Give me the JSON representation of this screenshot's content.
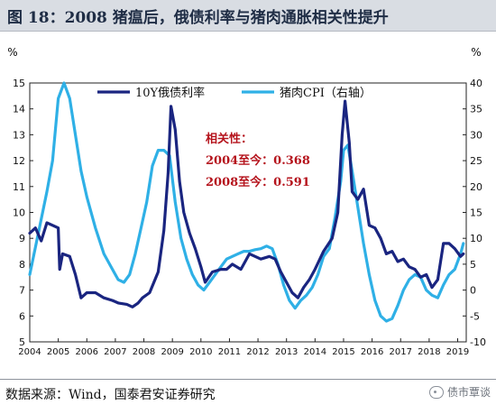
{
  "title": "图 18：2008 猪瘟后，俄债利率与猪肉通胀相关性提升",
  "source": "数据来源：Wind，国泰君安证券研究",
  "watermark": "债市覃谈",
  "colors": {
    "bond": "#1a2580",
    "pork": "#2fb0e6",
    "annotation": "#b5131c"
  },
  "chart_data": {
    "type": "line",
    "title": "",
    "xlabel": "",
    "y_left": {
      "label": "%",
      "range": [
        5,
        15
      ],
      "ticks": [
        "5",
        "6",
        "7",
        "8",
        "9",
        "10",
        "11",
        "12",
        "13",
        "14",
        "15"
      ]
    },
    "y_right": {
      "label": "%",
      "range": [
        -10,
        40
      ],
      "ticks": [
        "-10",
        "-5",
        "0",
        "5",
        "10",
        "15",
        "20",
        "25",
        "30",
        "35",
        "40"
      ]
    },
    "x_range": [
      2004,
      2019.3
    ],
    "x_ticks": [
      "2004",
      "2005",
      "2006",
      "2007",
      "2008",
      "2009",
      "2010",
      "2011",
      "2012",
      "2013",
      "2014",
      "2015",
      "2016",
      "2017",
      "2018",
      "2019"
    ],
    "legend_position": "top",
    "annotation": [
      "相关性：",
      "2004至今：0.368",
      "2008至今：0.591"
    ],
    "series": [
      {
        "name": "10Y俄债利率",
        "axis": "left",
        "points": [
          [
            2004.0,
            9.2
          ],
          [
            2004.2,
            9.4
          ],
          [
            2004.4,
            8.9
          ],
          [
            2004.6,
            9.6
          ],
          [
            2004.8,
            9.5
          ],
          [
            2005.0,
            9.4
          ],
          [
            2005.05,
            7.8
          ],
          [
            2005.15,
            8.4
          ],
          [
            2005.4,
            8.3
          ],
          [
            2005.6,
            7.6
          ],
          [
            2005.8,
            6.7
          ],
          [
            2006.0,
            6.9
          ],
          [
            2006.3,
            6.9
          ],
          [
            2006.6,
            6.7
          ],
          [
            2006.9,
            6.6
          ],
          [
            2007.1,
            6.5
          ],
          [
            2007.4,
            6.45
          ],
          [
            2007.6,
            6.35
          ],
          [
            2007.8,
            6.5
          ],
          [
            2007.95,
            6.7
          ],
          [
            2008.2,
            6.9
          ],
          [
            2008.5,
            7.7
          ],
          [
            2008.7,
            9.3
          ],
          [
            2008.85,
            11.5
          ],
          [
            2008.95,
            14.1
          ],
          [
            2009.1,
            13.2
          ],
          [
            2009.25,
            11.2
          ],
          [
            2009.4,
            10.0
          ],
          [
            2009.6,
            9.2
          ],
          [
            2009.8,
            8.6
          ],
          [
            2010.0,
            7.9
          ],
          [
            2010.15,
            7.3
          ],
          [
            2010.4,
            7.7
          ],
          [
            2010.7,
            7.8
          ],
          [
            2010.9,
            7.8
          ],
          [
            2011.1,
            8.0
          ],
          [
            2011.4,
            7.8
          ],
          [
            2011.7,
            8.4
          ],
          [
            2011.9,
            8.3
          ],
          [
            2012.1,
            8.2
          ],
          [
            2012.4,
            8.3
          ],
          [
            2012.6,
            8.2
          ],
          [
            2012.8,
            7.7
          ],
          [
            2013.0,
            7.3
          ],
          [
            2013.2,
            6.9
          ],
          [
            2013.4,
            6.7
          ],
          [
            2013.6,
            7.1
          ],
          [
            2013.8,
            7.4
          ],
          [
            2014.0,
            7.8
          ],
          [
            2014.3,
            8.5
          ],
          [
            2014.6,
            9.0
          ],
          [
            2014.8,
            10.0
          ],
          [
            2014.95,
            13.0
          ],
          [
            2015.05,
            14.3
          ],
          [
            2015.2,
            12.7
          ],
          [
            2015.3,
            10.8
          ],
          [
            2015.5,
            10.5
          ],
          [
            2015.7,
            10.9
          ],
          [
            2015.9,
            9.5
          ],
          [
            2016.1,
            9.4
          ],
          [
            2016.3,
            9.0
          ],
          [
            2016.5,
            8.4
          ],
          [
            2016.7,
            8.5
          ],
          [
            2016.9,
            8.1
          ],
          [
            2017.1,
            8.2
          ],
          [
            2017.3,
            7.9
          ],
          [
            2017.5,
            7.8
          ],
          [
            2017.7,
            7.5
          ],
          [
            2017.9,
            7.6
          ],
          [
            2018.1,
            7.1
          ],
          [
            2018.3,
            7.4
          ],
          [
            2018.5,
            8.8
          ],
          [
            2018.7,
            8.8
          ],
          [
            2018.9,
            8.6
          ],
          [
            2019.1,
            8.3
          ],
          [
            2019.2,
            8.4
          ]
        ]
      },
      {
        "name": "猪肉CPI（右轴）",
        "axis": "right",
        "points": [
          [
            2004.0,
            3
          ],
          [
            2004.3,
            11
          ],
          [
            2004.6,
            19
          ],
          [
            2004.8,
            25
          ],
          [
            2005.0,
            37
          ],
          [
            2005.2,
            40
          ],
          [
            2005.4,
            37
          ],
          [
            2005.6,
            30
          ],
          [
            2005.8,
            23
          ],
          [
            2006.0,
            18
          ],
          [
            2006.3,
            12
          ],
          [
            2006.6,
            7
          ],
          [
            2006.9,
            4
          ],
          [
            2007.1,
            2
          ],
          [
            2007.3,
            1.5
          ],
          [
            2007.5,
            3
          ],
          [
            2007.7,
            7
          ],
          [
            2007.9,
            12
          ],
          [
            2008.1,
            17
          ],
          [
            2008.3,
            24
          ],
          [
            2008.5,
            27
          ],
          [
            2008.7,
            27
          ],
          [
            2008.9,
            26
          ],
          [
            2009.1,
            17
          ],
          [
            2009.3,
            10
          ],
          [
            2009.5,
            6
          ],
          [
            2009.7,
            3
          ],
          [
            2009.9,
            1
          ],
          [
            2010.1,
            0
          ],
          [
            2010.3,
            1.5
          ],
          [
            2010.5,
            3
          ],
          [
            2010.7,
            4.5
          ],
          [
            2010.9,
            6
          ],
          [
            2011.1,
            6.5
          ],
          [
            2011.3,
            7
          ],
          [
            2011.5,
            7.5
          ],
          [
            2011.7,
            7.5
          ],
          [
            2011.9,
            7.8
          ],
          [
            2012.1,
            8
          ],
          [
            2012.3,
            8.5
          ],
          [
            2012.5,
            8
          ],
          [
            2012.7,
            5
          ],
          [
            2012.9,
            1
          ],
          [
            2013.1,
            -2
          ],
          [
            2013.3,
            -3.5
          ],
          [
            2013.5,
            -2
          ],
          [
            2013.7,
            -1
          ],
          [
            2013.9,
            0.5
          ],
          [
            2014.1,
            3
          ],
          [
            2014.3,
            6.5
          ],
          [
            2014.5,
            8
          ],
          [
            2014.7,
            14
          ],
          [
            2014.9,
            21
          ],
          [
            2015.0,
            27
          ],
          [
            2015.15,
            28
          ],
          [
            2015.3,
            23
          ],
          [
            2015.5,
            16
          ],
          [
            2015.7,
            9
          ],
          [
            2015.9,
            3
          ],
          [
            2016.1,
            -2
          ],
          [
            2016.3,
            -5
          ],
          [
            2016.5,
            -6
          ],
          [
            2016.7,
            -5.5
          ],
          [
            2016.9,
            -3
          ],
          [
            2017.1,
            0
          ],
          [
            2017.3,
            2
          ],
          [
            2017.5,
            3
          ],
          [
            2017.7,
            2.5
          ],
          [
            2017.9,
            0
          ],
          [
            2018.1,
            -1
          ],
          [
            2018.3,
            -1.5
          ],
          [
            2018.5,
            1
          ],
          [
            2018.7,
            3
          ],
          [
            2018.9,
            4
          ],
          [
            2019.1,
            7
          ],
          [
            2019.2,
            9
          ]
        ]
      }
    ]
  }
}
